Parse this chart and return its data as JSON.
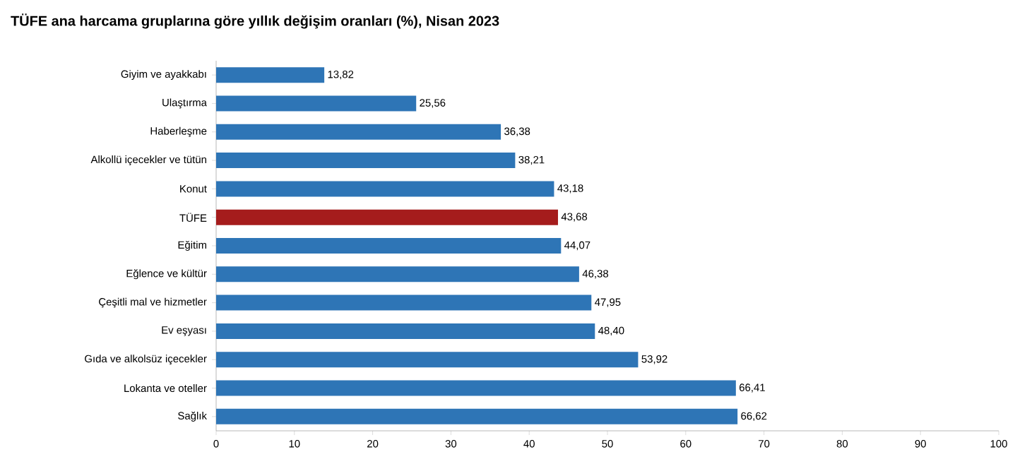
{
  "chart_data": {
    "type": "bar",
    "orientation": "horizontal",
    "title": "TÜFE ana harcama gruplarına göre yıllık değişim oranları (%), Nisan 2023",
    "categories": [
      "Giyim ve ayakkabı",
      "Ulaştırma",
      "Haberleşme",
      "Alkollü içecekler ve tütün",
      "Konut",
      "TÜFE",
      "Eğitim",
      "Eğlence ve kültür",
      "Çeşitli mal ve hizmetler",
      "Ev eşyası",
      "Gıda ve alkolsüz içecekler",
      "Lokanta ve oteller",
      "Sağlık"
    ],
    "values": [
      13.82,
      25.56,
      36.38,
      38.21,
      43.18,
      43.68,
      44.07,
      46.38,
      47.95,
      48.4,
      53.92,
      66.41,
      66.62
    ],
    "value_labels": [
      "13,82",
      "25,56",
      "36,38",
      "38,21",
      "43,18",
      "43,68",
      "44,07",
      "46,38",
      "47,95",
      "48,40",
      "53,92",
      "66,41",
      "66,62"
    ],
    "colors": [
      "#2e75b6",
      "#2e75b6",
      "#2e75b6",
      "#2e75b6",
      "#2e75b6",
      "#a51c1c",
      "#2e75b6",
      "#2e75b6",
      "#2e75b6",
      "#2e75b6",
      "#2e75b6",
      "#2e75b6",
      "#2e75b6"
    ],
    "xlim": [
      0,
      100
    ],
    "xticks": [
      0,
      10,
      20,
      30,
      40,
      50,
      60,
      70,
      80,
      90,
      100
    ]
  }
}
